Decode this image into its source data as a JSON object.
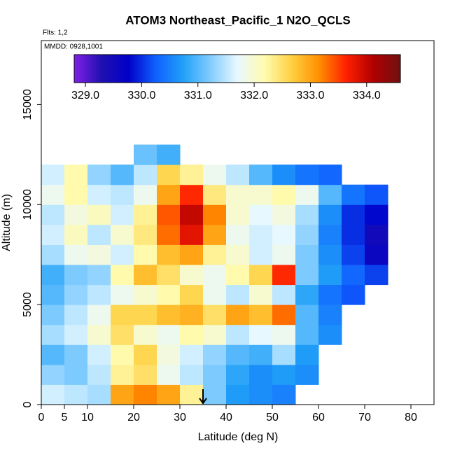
{
  "chart_data": {
    "type": "heatmap",
    "title": "ATOM3 Northeast_Pacific_1 N2O_QCLS",
    "annotations": [
      "Flts: 1,2",
      "MMDD: 0928,1001"
    ],
    "x_label": "Latitude (deg N)",
    "y_label": "Altitude (m)",
    "xlim": [
      0,
      85
    ],
    "xticks": [
      0,
      5,
      10,
      20,
      30,
      40,
      50,
      60,
      70,
      80
    ],
    "ylim": [
      0,
      18200
    ],
    "yticks": [
      0,
      5000,
      10000,
      15000
    ],
    "xbins": [
      0,
      5,
      10,
      15,
      20,
      25,
      30,
      35,
      40,
      45,
      50,
      55,
      60,
      65,
      70,
      75
    ],
    "ybins": [
      0,
      1000,
      2000,
      3000,
      4000,
      5000,
      6000,
      7000,
      8000,
      9000,
      10000,
      11000,
      12000,
      13000
    ],
    "values": [
      [
        331.6,
        331.5,
        331.4,
        333.0,
        333.2,
        333.0,
        332.3,
        331.2,
        330.7,
        330.6,
        330.5,
        null,
        null,
        null,
        null
      ],
      [
        331.3,
        331.2,
        331.5,
        332.3,
        332.5,
        331.8,
        331.5,
        331.2,
        330.8,
        330.6,
        330.7,
        330.6,
        null,
        null,
        null
      ],
      [
        331.0,
        331.2,
        331.6,
        332.2,
        332.6,
        331.9,
        331.6,
        331.3,
        331.0,
        330.9,
        331.4,
        330.7,
        null,
        null,
        null
      ],
      [
        331.4,
        331.6,
        332.0,
        332.5,
        332.0,
        331.8,
        332.2,
        332.0,
        331.5,
        331.7,
        331.8,
        331.0,
        330.6,
        null,
        null
      ],
      [
        331.2,
        331.5,
        331.8,
        332.6,
        332.6,
        332.8,
        332.9,
        332.5,
        333.0,
        332.8,
        333.3,
        331.0,
        330.5,
        null,
        null
      ],
      [
        331.0,
        331.3,
        331.5,
        331.8,
        332.0,
        332.2,
        332.6,
        331.8,
        331.5,
        332.0,
        331.5,
        330.8,
        330.4,
        330.2,
        null
      ],
      [
        330.9,
        331.2,
        331.3,
        332.2,
        332.8,
        332.5,
        332.0,
        331.8,
        332.2,
        332.6,
        333.6,
        331.2,
        330.7,
        330.3,
        330.1
      ],
      [
        331.4,
        331.8,
        331.9,
        331.6,
        332.2,
        332.8,
        333.0,
        332.3,
        332.0,
        331.6,
        331.8,
        331.2,
        330.6,
        330.1,
        329.6
      ],
      [
        331.6,
        332.1,
        331.5,
        332.0,
        332.4,
        333.3,
        333.8,
        333.0,
        331.8,
        331.6,
        331.7,
        331.3,
        330.5,
        330.0,
        329.5
      ],
      [
        331.5,
        331.9,
        332.1,
        331.6,
        332.3,
        333.4,
        334.0,
        333.2,
        332.0,
        331.7,
        331.9,
        331.4,
        330.6,
        330.0,
        329.8
      ],
      [
        331.8,
        332.2,
        331.6,
        331.5,
        331.8,
        333.0,
        333.6,
        332.4,
        332.0,
        332.0,
        332.2,
        331.8,
        331.0,
        330.4,
        330.2
      ],
      [
        331.6,
        332.2,
        331.3,
        331.0,
        331.5,
        332.6,
        332.3,
        331.8,
        331.5,
        331.0,
        330.6,
        330.4,
        330.3,
        null,
        null
      ],
      [
        null,
        null,
        null,
        null,
        331.1,
        330.9,
        null,
        null,
        null,
        null,
        null,
        null,
        null,
        null,
        null
      ]
    ],
    "colormap": [
      "#8020e8",
      "#2010b0",
      "#0000c8",
      "#1060ff",
      "#20a0f8",
      "#80ccff",
      "#e8f8ff",
      "#fffbb0",
      "#ffd040",
      "#ff9000",
      "#ff2000",
      "#b00000",
      "#701010"
    ],
    "cbar_lim": [
      328.8,
      334.6
    ],
    "cbar_ticks": [
      {
        "value": 329,
        "label": "329.0"
      },
      {
        "value": 330,
        "label": "330.0"
      },
      {
        "value": 331,
        "label": "331.0"
      },
      {
        "value": 332,
        "label": "332.0"
      },
      {
        "value": 333,
        "label": "333.0"
      },
      {
        "value": 334,
        "label": "334.0"
      }
    ],
    "marker_x": 35
  }
}
